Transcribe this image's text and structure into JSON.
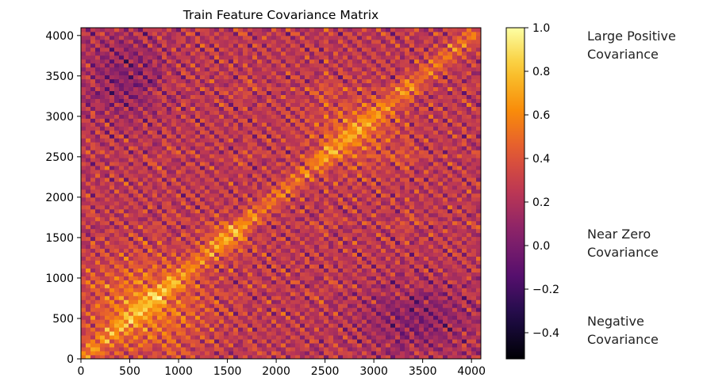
{
  "chart_data": {
    "type": "heatmap",
    "title": "Train Feature Covariance Matrix",
    "xlabel": "",
    "ylabel": "",
    "xlim": [
      0,
      4096
    ],
    "ylim": [
      0,
      4096
    ],
    "x_ticks": [
      0,
      500,
      1000,
      1500,
      2000,
      2500,
      3000,
      3500,
      4000
    ],
    "y_ticks": [
      0,
      500,
      1000,
      1500,
      2000,
      2500,
      3000,
      3500,
      4000
    ],
    "colormap": "inferno",
    "color_range": [
      -0.52,
      1.0
    ],
    "colorbar_ticks": [
      "1.0",
      "0.8",
      "0.6",
      "0.4",
      "0.2",
      "0.0",
      "−0.2",
      "−0.4"
    ],
    "colorbar_tick_values": [
      1.0,
      0.8,
      0.6,
      0.4,
      0.2,
      0.0,
      -0.2,
      -0.4
    ],
    "grid": false,
    "approx_regions": [
      {
        "x": [
          0,
          1300
        ],
        "y": [
          0,
          1300
        ],
        "level": 0.55
      },
      {
        "x": [
          1250,
          1750
        ],
        "y": [
          1250,
          1750
        ],
        "level": 0.45
      },
      {
        "x": [
          2300,
          3300
        ],
        "y": [
          2300,
          3300
        ],
        "level": 0.45
      },
      {
        "x": [
          2800,
          4096
        ],
        "y": [
          0,
          1000
        ],
        "level": 0.05
      },
      {
        "x": [
          0,
          900
        ],
        "y": [
          2900,
          4096
        ],
        "level": 0.05
      }
    ]
  },
  "annotations": [
    {
      "text": "Large Positive\nCovariance",
      "value": 1.0
    },
    {
      "text": "Near Zero\nCovariance",
      "value": 0.0
    },
    {
      "text": "Negative\nCovariance",
      "value": -0.4
    }
  ]
}
